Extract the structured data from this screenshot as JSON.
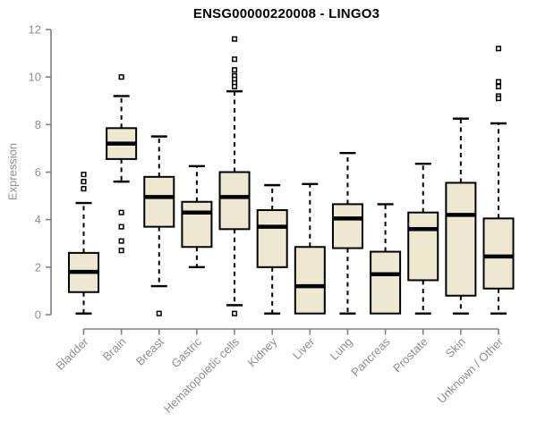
{
  "chart_data": {
    "type": "boxplot",
    "title": "ENSG00000220008 - LINGO3",
    "xlabel": "",
    "ylabel": "Expression",
    "ylim": [
      0,
      12
    ],
    "yticks": [
      0,
      2,
      4,
      6,
      8,
      10,
      12
    ],
    "grid": false,
    "legend": "none",
    "categories": [
      "Bladder",
      "Brain",
      "Breast",
      "Gastric",
      "Hematopoietic cells",
      "Kidney",
      "Liver",
      "Lung",
      "Pancreas",
      "Prostate",
      "Skin",
      "Unknown / Other"
    ],
    "series": [
      {
        "category": "Bladder",
        "low": 0.05,
        "q1": 0.95,
        "median": 1.8,
        "q3": 2.6,
        "high": 4.7,
        "outliers": [
          5.3,
          5.6,
          5.9
        ]
      },
      {
        "category": "Brain",
        "low": 5.6,
        "q1": 6.55,
        "median": 7.2,
        "q3": 7.85,
        "high": 9.2,
        "outliers": [
          10.0,
          4.3,
          3.7,
          3.1,
          2.7
        ]
      },
      {
        "category": "Breast",
        "low": 1.2,
        "q1": 3.7,
        "median": 4.95,
        "q3": 5.8,
        "high": 7.5,
        "outliers": [
          0.05
        ]
      },
      {
        "category": "Gastric",
        "low": 2.0,
        "q1": 2.85,
        "median": 4.3,
        "q3": 4.75,
        "high": 6.25,
        "outliers": []
      },
      {
        "category": "Hematopoietic cells",
        "low": 0.4,
        "q1": 3.6,
        "median": 4.95,
        "q3": 6.0,
        "high": 9.4,
        "outliers": [
          11.6,
          10.75,
          10.3,
          10.05,
          9.9,
          9.75,
          9.6,
          0.05
        ]
      },
      {
        "category": "Kidney",
        "low": 0.05,
        "q1": 2.0,
        "median": 3.7,
        "q3": 4.4,
        "high": 5.45,
        "outliers": []
      },
      {
        "category": "Liver",
        "low": 0.05,
        "q1": 0.05,
        "median": 1.2,
        "q3": 2.85,
        "high": 5.5,
        "outliers": []
      },
      {
        "category": "Lung",
        "low": 0.05,
        "q1": 2.8,
        "median": 4.05,
        "q3": 4.65,
        "high": 6.8,
        "outliers": []
      },
      {
        "category": "Pancreas",
        "low": 0.05,
        "q1": 0.05,
        "median": 1.7,
        "q3": 2.65,
        "high": 4.65,
        "outliers": []
      },
      {
        "category": "Prostate",
        "low": 0.05,
        "q1": 1.45,
        "median": 3.6,
        "q3": 4.3,
        "high": 6.35,
        "outliers": []
      },
      {
        "category": "Skin",
        "low": 0.05,
        "q1": 0.8,
        "median": 4.2,
        "q3": 5.55,
        "high": 8.25,
        "outliers": []
      },
      {
        "category": "Unknown / Other",
        "low": 0.05,
        "q1": 1.1,
        "median": 2.45,
        "q3": 4.05,
        "high": 8.05,
        "outliers": [
          11.2,
          9.8,
          9.6,
          9.2,
          9.1
        ]
      }
    ],
    "colors": {
      "box_fill": "#EDE8CF",
      "box_border": "#000000",
      "median_line": "#000000",
      "whisker": "#000000",
      "axis": "#7f7f7f",
      "tick_label": "#8e8e8e",
      "title": "#000000",
      "background": "#FFFFFF"
    }
  }
}
